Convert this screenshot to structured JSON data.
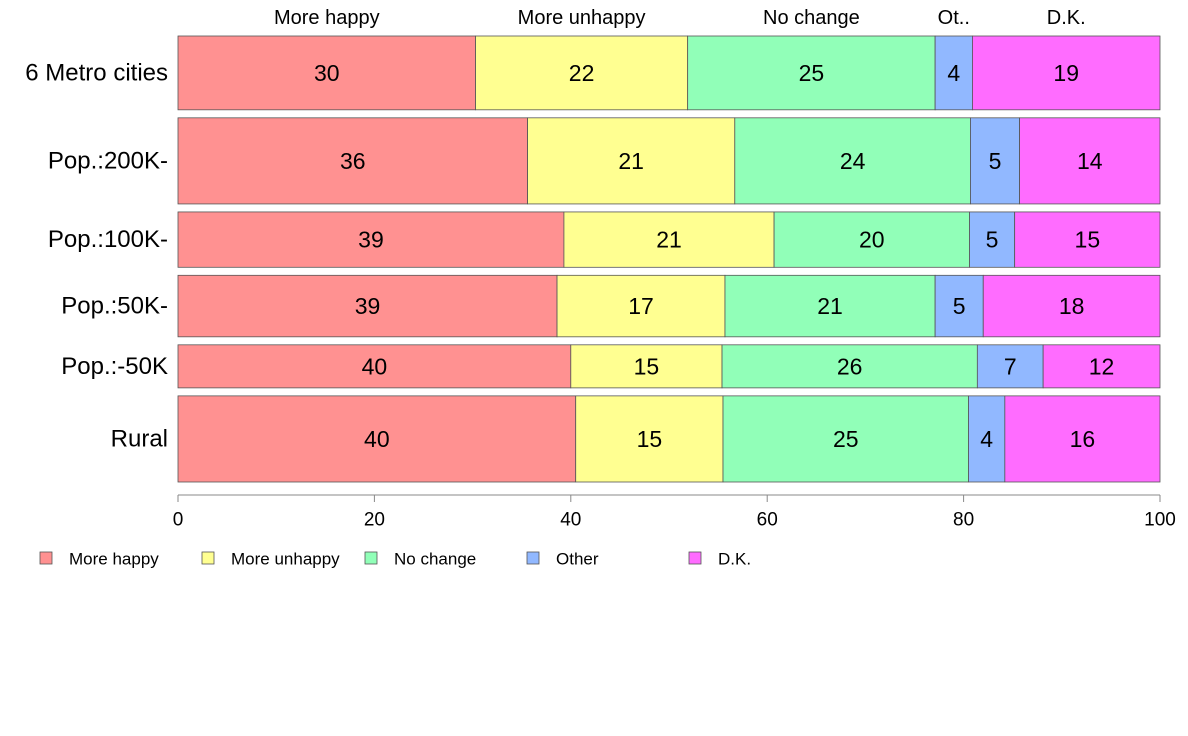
{
  "chart_data": {
    "type": "bar",
    "orientation": "horizontal",
    "stacked": true,
    "categories": [
      "6 Metro cities",
      "Pop.:200K-",
      "Pop.:100K-",
      "Pop.:50K-",
      "Pop.:-50K",
      "Rural"
    ],
    "series": [
      {
        "name": "More happy",
        "values": [
          30.3,
          35.6,
          39.3,
          38.6,
          40.0,
          40.5
        ]
      },
      {
        "name": "More unhappy",
        "values": [
          21.6,
          21.1,
          21.4,
          17.1,
          15.4,
          15.0
        ]
      },
      {
        "name": "No change",
        "values": [
          25.2,
          24.0,
          19.9,
          21.4,
          26.0,
          25.0
        ]
      },
      {
        "name": "Other",
        "values": [
          3.8,
          5.0,
          4.6,
          4.9,
          6.7,
          3.7
        ]
      },
      {
        "name": "D.K.",
        "values": [
          19.1,
          14.3,
          14.8,
          18.0,
          11.9,
          15.8
        ]
      }
    ],
    "data_labels": [
      [
        "30",
        "22",
        "25",
        "4",
        "19"
      ],
      [
        "36",
        "21",
        "24",
        "5",
        "14"
      ],
      [
        "39",
        "21",
        "20",
        "5",
        "15"
      ],
      [
        "39",
        "17",
        "21",
        "5",
        "18"
      ],
      [
        "40",
        "15",
        "26",
        "7",
        "12"
      ],
      [
        "40",
        "15",
        "25",
        "4",
        "16"
      ]
    ],
    "top_labels": [
      "More happy",
      "More unhappy",
      "No change",
      "Ot..",
      "D.K."
    ],
    "row_weights": [
      6,
      7,
      4.5,
      5,
      3.5,
      7
    ],
    "xlim": [
      0,
      100
    ],
    "xticks": [
      "0",
      "20",
      "40",
      "60",
      "80",
      "100"
    ],
    "title": "",
    "xlabel": "",
    "ylabel": "",
    "grid": false,
    "legend": {
      "placement": "bottom-left",
      "entries": [
        "More happy",
        "More unhappy",
        "No change",
        "Other",
        "D.K."
      ]
    },
    "colors": [
      "#ff9191",
      "#ffff91",
      "#91ffb8",
      "#91b8ff",
      "#ff6cff"
    ],
    "border_color": "#555555",
    "axis_color": "#888888"
  }
}
